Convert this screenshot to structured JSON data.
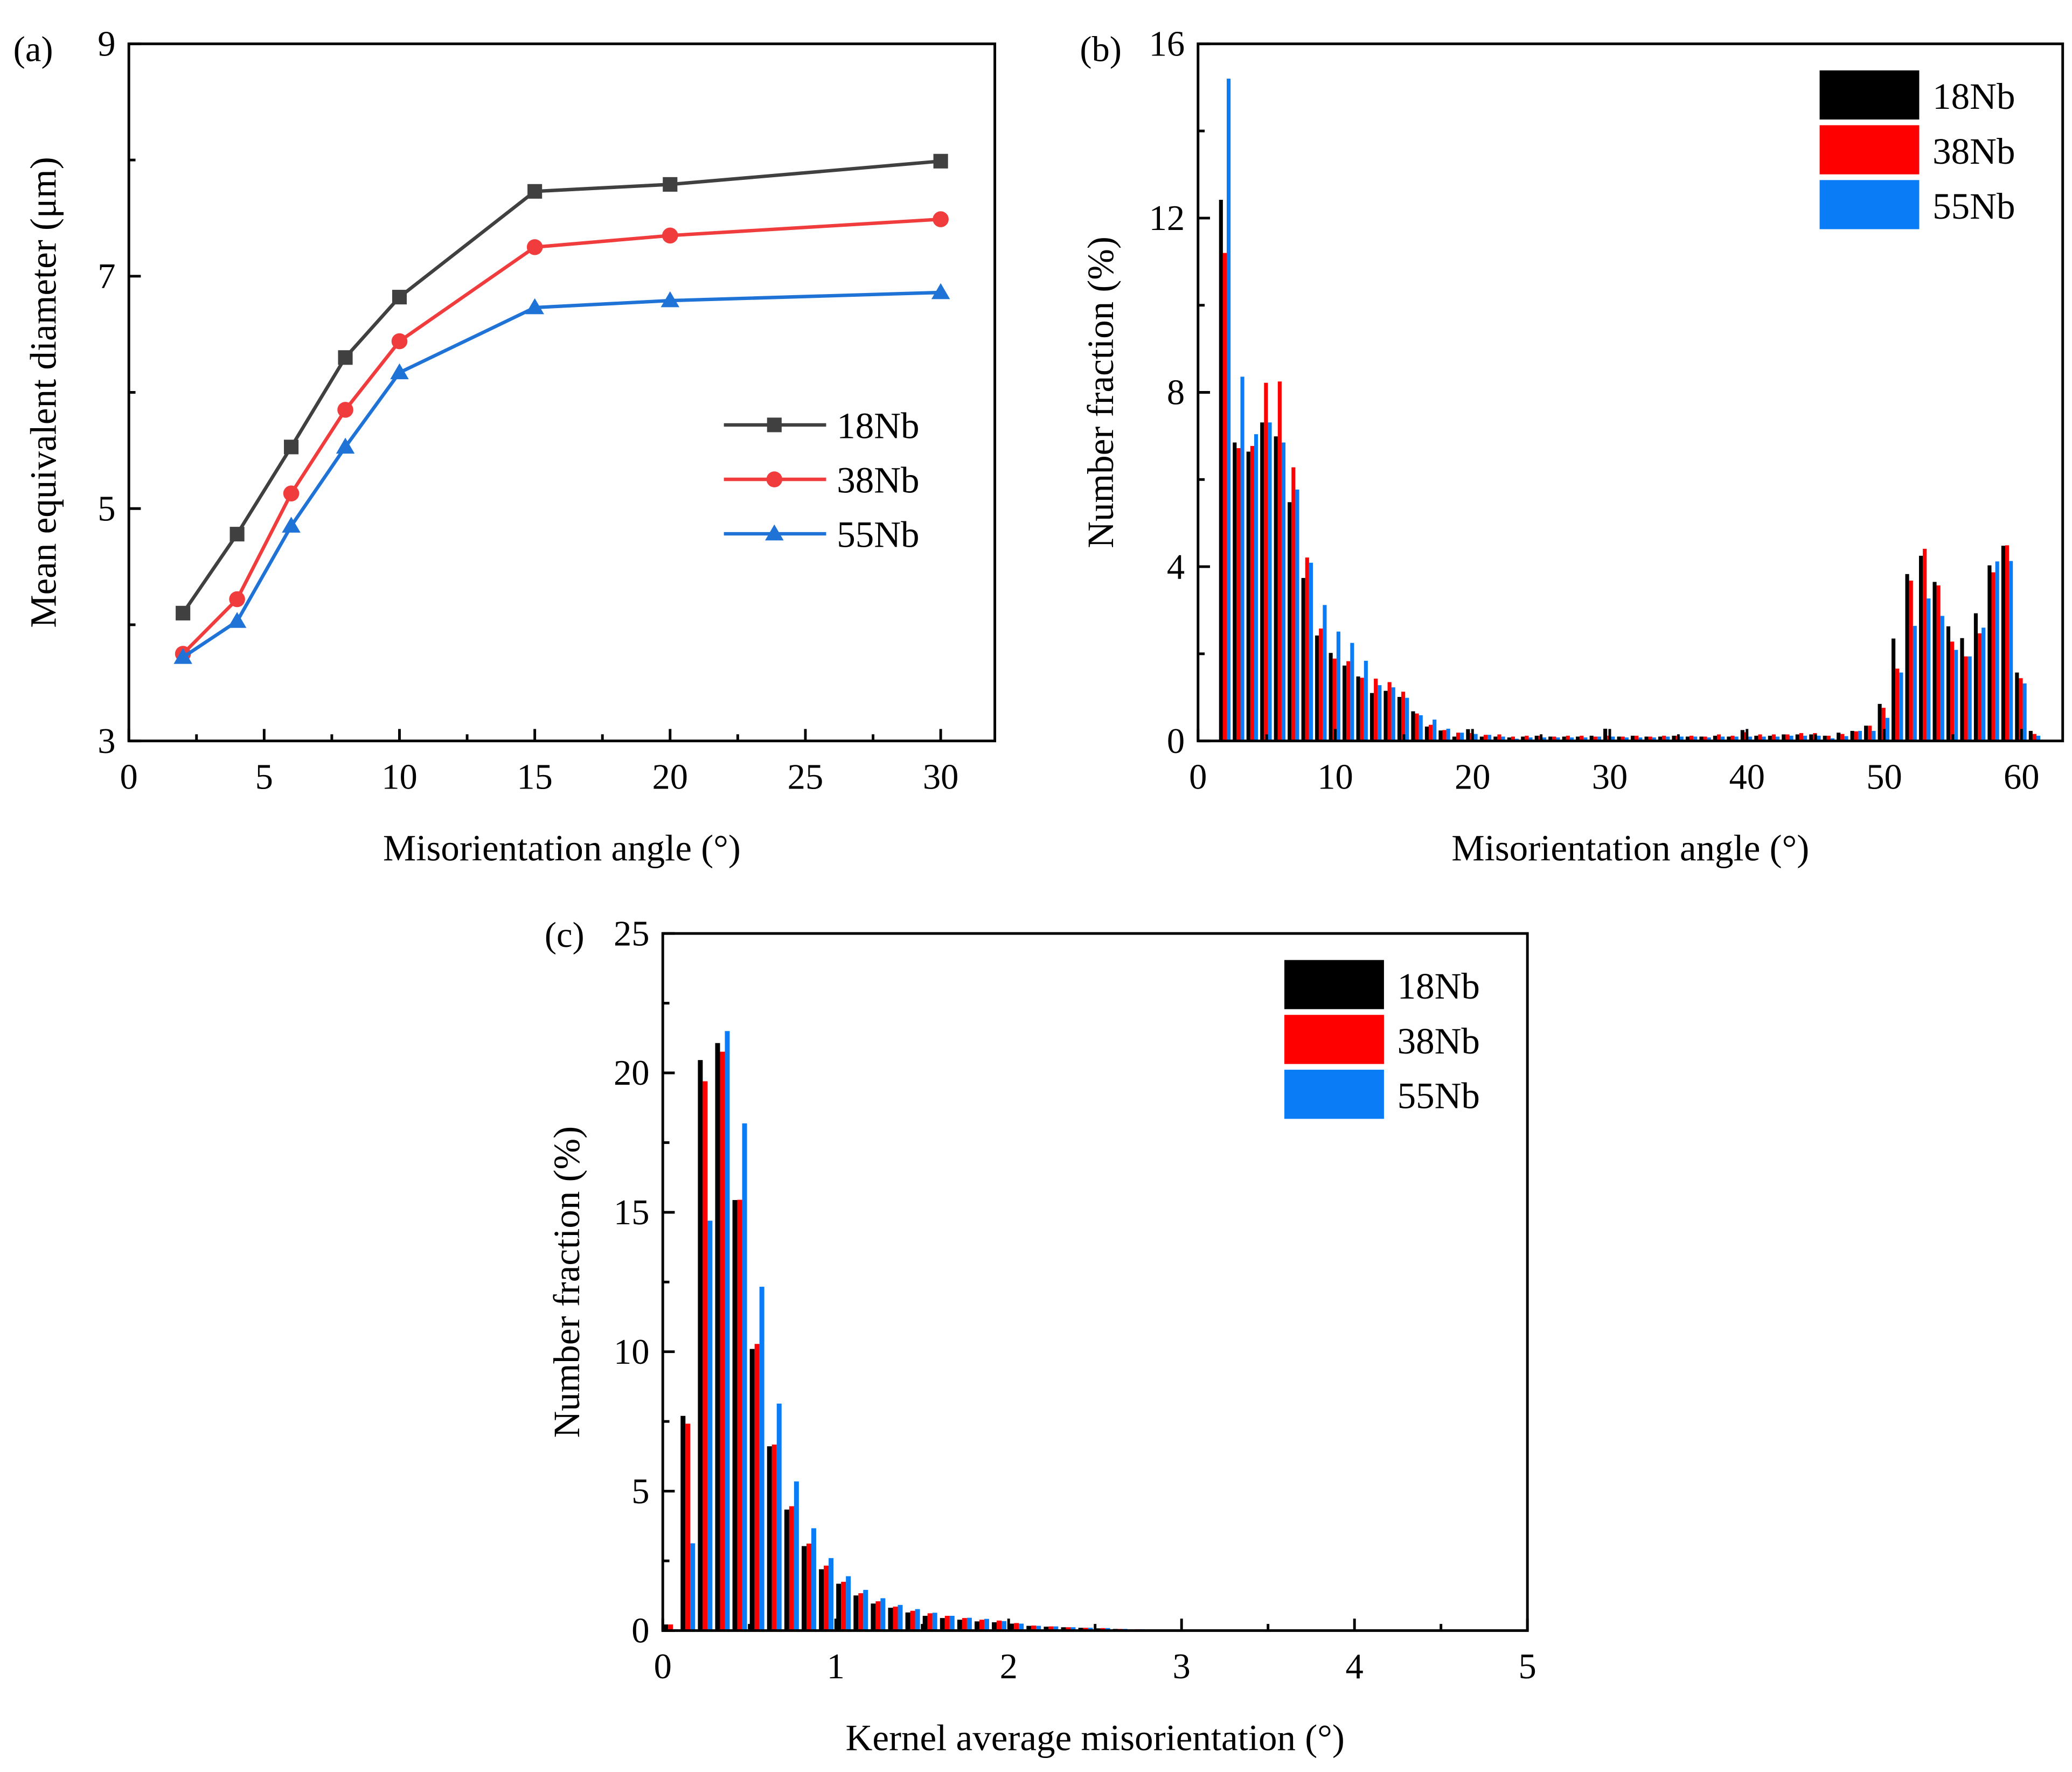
{
  "chart_data": [
    {
      "panel": "(a)",
      "type": "line",
      "xlabel": "Misorientation angle (°)",
      "ylabel": "Mean equivalent diameter (μm)",
      "xlim": [
        0,
        32
      ],
      "ylim": [
        3,
        9
      ],
      "xticks": [
        0,
        5,
        10,
        15,
        20,
        25,
        30
      ],
      "yticks": [
        3,
        5,
        7,
        9
      ],
      "legend_position": "center-right",
      "x": [
        2,
        4,
        6,
        8,
        10,
        15,
        20,
        30
      ],
      "series": [
        {
          "name": "18Nb",
          "color": "#404040",
          "marker": "square",
          "values": [
            4.1,
            4.78,
            5.53,
            6.3,
            6.82,
            7.73,
            7.79,
            7.99
          ]
        },
        {
          "name": "38Nb",
          "color": "#f03c3c",
          "marker": "circle",
          "values": [
            3.75,
            4.22,
            5.13,
            5.85,
            6.44,
            7.25,
            7.35,
            7.49
          ]
        },
        {
          "name": "55Nb",
          "color": "#1f72d6",
          "marker": "triangle",
          "values": [
            3.72,
            4.03,
            4.85,
            5.53,
            6.17,
            6.73,
            6.79,
            6.86
          ]
        }
      ]
    },
    {
      "panel": "(b)",
      "type": "bar",
      "xlabel": "Misorientation angle (°)",
      "ylabel": "Number fraction (%)",
      "xlim": [
        0,
        63
      ],
      "ylim": [
        0,
        16
      ],
      "xticks": [
        0,
        10,
        20,
        30,
        40,
        50,
        60
      ],
      "yticks": [
        0,
        4,
        8,
        12,
        16
      ],
      "legend_position": "top-right",
      "x": [
        2,
        3,
        4,
        5,
        6,
        7,
        8,
        9,
        10,
        11,
        12,
        13,
        14,
        15,
        16,
        17,
        18,
        19,
        20,
        21,
        22,
        23,
        24,
        25,
        26,
        27,
        28,
        29,
        30,
        31,
        32,
        33,
        34,
        35,
        36,
        37,
        38,
        39,
        40,
        41,
        42,
        43,
        44,
        45,
        46,
        47,
        48,
        49,
        50,
        51,
        52,
        53,
        54,
        55,
        56,
        57,
        58,
        59,
        60,
        61
      ],
      "series": [
        {
          "name": "18Nb",
          "color": "#000000",
          "values": [
            12.42,
            6.85,
            6.64,
            7.31,
            6.99,
            5.48,
            3.74,
            2.42,
            2.02,
            1.73,
            1.48,
            1.1,
            1.15,
            1.01,
            0.68,
            0.33,
            0.24,
            0.1,
            0.27,
            0.1,
            0.1,
            0.08,
            0.1,
            0.12,
            0.1,
            0.1,
            0.1,
            0.12,
            0.28,
            0.1,
            0.12,
            0.1,
            0.1,
            0.12,
            0.1,
            0.1,
            0.12,
            0.1,
            0.25,
            0.12,
            0.12,
            0.15,
            0.15,
            0.15,
            0.12,
            0.19,
            0.23,
            0.35,
            0.85,
            2.35,
            3.83,
            4.25,
            3.65,
            2.63,
            2.36,
            2.93,
            4.03,
            4.48,
            1.57,
            0.23
          ]
        },
        {
          "name": "38Nb",
          "color": "#ff0000",
          "values": [
            11.2,
            6.72,
            6.77,
            8.22,
            8.25,
            6.28,
            4.21,
            2.58,
            1.89,
            1.83,
            1.45,
            1.43,
            1.35,
            1.13,
            0.63,
            0.37,
            0.25,
            0.19,
            0.18,
            0.14,
            0.15,
            0.1,
            0.12,
            0.12,
            0.1,
            0.12,
            0.12,
            0.1,
            0.12,
            0.1,
            0.12,
            0.1,
            0.12,
            0.12,
            0.12,
            0.1,
            0.15,
            0.12,
            0.2,
            0.15,
            0.15,
            0.15,
            0.18,
            0.18,
            0.12,
            0.16,
            0.22,
            0.35,
            0.76,
            1.66,
            3.68,
            4.41,
            3.57,
            2.28,
            1.94,
            2.47,
            3.87,
            4.49,
            1.44,
            0.16
          ]
        },
        {
          "name": "55Nb",
          "color": "#0a7cf5",
          "values": [
            15.2,
            8.36,
            7.04,
            7.31,
            6.85,
            5.77,
            4.09,
            3.12,
            2.51,
            2.25,
            1.84,
            1.28,
            1.23,
            0.99,
            0.59,
            0.49,
            0.28,
            0.19,
            0.16,
            0.14,
            0.1,
            0.05,
            0.08,
            0.08,
            0.08,
            0.08,
            0.08,
            0.1,
            0.1,
            0.08,
            0.08,
            0.08,
            0.1,
            0.1,
            0.1,
            0.08,
            0.1,
            0.1,
            0.1,
            0.1,
            0.1,
            0.12,
            0.12,
            0.12,
            0.06,
            0.11,
            0.23,
            0.23,
            0.53,
            1.57,
            2.64,
            3.27,
            2.87,
            2.09,
            1.94,
            2.6,
            4.12,
            4.13,
            1.32,
            0.12
          ]
        }
      ],
      "legend": [
        "18Nb",
        "38Nb",
        "55Nb"
      ]
    },
    {
      "panel": "(c)",
      "type": "bar",
      "xlabel": "Kernel average misorientation (°)",
      "ylabel": "Number fraction (%)",
      "xlim": [
        0,
        5
      ],
      "ylim": [
        0,
        25
      ],
      "xticks": [
        0,
        1,
        2,
        3,
        4,
        5
      ],
      "yticks": [
        0,
        5,
        10,
        15,
        20,
        25
      ],
      "legend_position": "top-right",
      "x": [
        0.05,
        0.15,
        0.25,
        0.35,
        0.45,
        0.55,
        0.65,
        0.75,
        0.85,
        0.95,
        1.05,
        1.15,
        1.25,
        1.35,
        1.45,
        1.55,
        1.65,
        1.75,
        1.85,
        1.95,
        2.05,
        2.15,
        2.25,
        2.35,
        2.45,
        2.55,
        2.65,
        2.75,
        2.85,
        2.95
      ],
      "series": [
        {
          "name": "18Nb",
          "color": "#000000",
          "values": [
            0.22,
            7.7,
            20.46,
            21.07,
            15.44,
            10.1,
            6.61,
            4.34,
            3.03,
            2.2,
            1.68,
            1.26,
            0.97,
            0.82,
            0.65,
            0.53,
            0.45,
            0.39,
            0.33,
            0.3,
            0.25,
            0.17,
            0.14,
            0.12,
            0.1,
            0.08,
            0.06,
            0.04,
            0.03,
            0.02
          ]
        },
        {
          "name": "38Nb",
          "color": "#ff0000",
          "values": [
            0.22,
            7.42,
            19.7,
            20.76,
            15.45,
            10.28,
            6.67,
            4.46,
            3.12,
            2.33,
            1.75,
            1.34,
            1.05,
            0.86,
            0.71,
            0.62,
            0.53,
            0.45,
            0.39,
            0.36,
            0.27,
            0.18,
            0.15,
            0.12,
            0.1,
            0.09,
            0.06,
            0.05,
            0.03,
            0.02
          ]
        },
        {
          "name": "55Nb",
          "color": "#0a7cf5",
          "values": [
            0.05,
            3.13,
            14.7,
            21.5,
            18.19,
            12.33,
            8.14,
            5.35,
            3.67,
            2.6,
            1.95,
            1.46,
            1.16,
            0.92,
            0.77,
            0.64,
            0.53,
            0.46,
            0.42,
            0.34,
            0.25,
            0.17,
            0.15,
            0.12,
            0.1,
            0.09,
            0.06,
            0.05,
            0.03,
            0.02
          ]
        }
      ],
      "legend": [
        "18Nb",
        "38Nb",
        "55Nb"
      ]
    }
  ]
}
